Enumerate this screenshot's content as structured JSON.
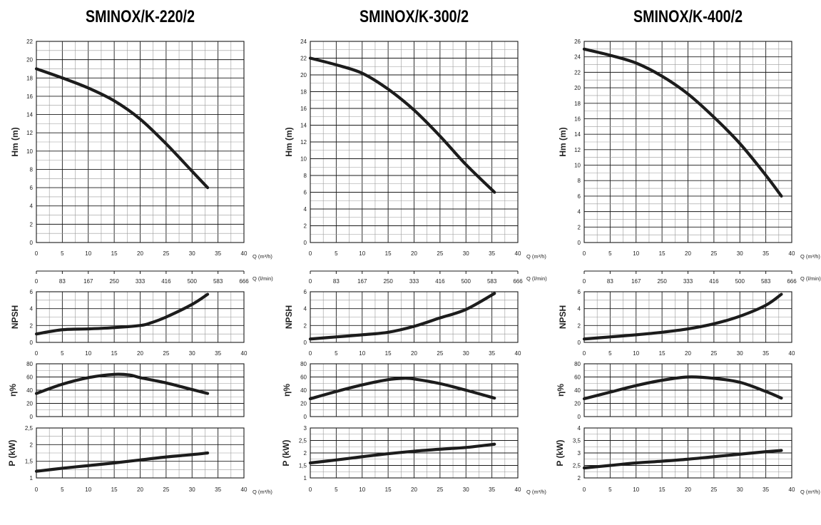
{
  "chart_data": [
    {
      "type": "line",
      "title": "SMINOX/K-220/2",
      "panels": {
        "head": {
          "ylabel": "Hm   (m)",
          "xlabel": "Q (m³/h)",
          "ylim": [
            0,
            22
          ],
          "yticks": [
            0,
            2,
            4,
            6,
            8,
            10,
            12,
            14,
            16,
            18,
            20,
            22
          ],
          "x": [
            0,
            5,
            10,
            15,
            20,
            25,
            30,
            33
          ],
          "y": [
            19,
            18,
            16.9,
            15.5,
            13.5,
            10.8,
            7.8,
            6
          ]
        },
        "lmin_axis": {
          "xlabel": "Q (l/min)",
          "ticks": [
            "0",
            "83",
            "167",
            "250",
            "333",
            "416",
            "500",
            "583",
            "666"
          ]
        },
        "npsh": {
          "ylabel": "NPSH",
          "ylim": [
            0,
            6
          ],
          "yticks": [
            0,
            2,
            4,
            6
          ],
          "x": [
            0,
            5,
            10,
            15,
            20,
            22,
            25,
            30,
            33
          ],
          "y": [
            1,
            1.5,
            1.6,
            1.75,
            2,
            2.3,
            3,
            4.5,
            5.7
          ]
        },
        "efficiency": {
          "ylabel": "η%",
          "ylim": [
            0,
            80
          ],
          "yticks": [
            0,
            20,
            40,
            60,
            80
          ],
          "x": [
            0,
            5,
            10,
            15,
            18,
            20,
            25,
            30,
            33
          ],
          "y": [
            35,
            49,
            59,
            64,
            63,
            59,
            51,
            41,
            35
          ]
        },
        "power": {
          "ylabel": "P   (kW)",
          "xlabel": "Q (m³/h)",
          "ylim": [
            1,
            2.5
          ],
          "yticks": [
            1,
            1.5,
            2,
            2.5
          ],
          "ytick_labels": [
            "1",
            "1,5",
            "2",
            "2,5"
          ],
          "x": [
            0,
            5,
            10,
            15,
            20,
            25,
            30,
            33
          ],
          "y": [
            1.2,
            1.29,
            1.37,
            1.45,
            1.54,
            1.63,
            1.7,
            1.75
          ]
        }
      },
      "xlim": [
        0,
        40
      ],
      "xticks": [
        0,
        5,
        10,
        15,
        20,
        25,
        30,
        35,
        40
      ]
    },
    {
      "type": "line",
      "title": "SMINOX/K-300/2",
      "panels": {
        "head": {
          "ylabel": "Hm   (m)",
          "xlabel": "Q (m³/h)",
          "ylim": [
            0,
            24
          ],
          "yticks": [
            0,
            2,
            4,
            6,
            8,
            10,
            12,
            14,
            16,
            18,
            20,
            22,
            24
          ],
          "x": [
            0,
            5,
            10,
            15,
            20,
            25,
            30,
            35.5
          ],
          "y": [
            22,
            21.2,
            20.2,
            18.3,
            15.8,
            12.7,
            9.3,
            6
          ]
        },
        "lmin_axis": {
          "xlabel": "Q (l/min)",
          "ticks": [
            "0",
            "83",
            "167",
            "250",
            "333",
            "416",
            "500",
            "583",
            "666"
          ]
        },
        "npsh": {
          "ylabel": "NPSH",
          "ylim": [
            0,
            6
          ],
          "yticks": [
            0,
            2,
            4,
            6
          ],
          "x": [
            0,
            5,
            10,
            15,
            20,
            25,
            30,
            35.5
          ],
          "y": [
            0.4,
            0.65,
            0.9,
            1.2,
            1.9,
            2.9,
            3.9,
            5.8
          ]
        },
        "efficiency": {
          "ylabel": "η%",
          "ylim": [
            0,
            80
          ],
          "yticks": [
            0,
            20,
            40,
            60,
            80
          ],
          "x": [
            0,
            5,
            10,
            15,
            18,
            20,
            25,
            30,
            35.5
          ],
          "y": [
            27,
            38,
            48,
            56,
            58,
            57,
            50,
            40,
            28
          ]
        },
        "power": {
          "ylabel": "P   (kW)",
          "xlabel": "Q (m³/h)",
          "ylim": [
            1,
            3
          ],
          "yticks": [
            1,
            1.5,
            2,
            2.5,
            3
          ],
          "ytick_labels": [
            "1",
            "1,5",
            "2",
            "2,5",
            "3"
          ],
          "x": [
            0,
            5,
            10,
            15,
            20,
            25,
            30,
            35.5
          ],
          "y": [
            1.6,
            1.72,
            1.85,
            1.97,
            2.07,
            2.15,
            2.22,
            2.35
          ]
        }
      },
      "xlim": [
        0,
        40
      ],
      "xticks": [
        0,
        5,
        10,
        15,
        20,
        25,
        30,
        35,
        40
      ]
    },
    {
      "type": "line",
      "title": "SMINOX/K-400/2",
      "panels": {
        "head": {
          "ylabel": "Hm   (m)",
          "xlabel": "Q (m³/h)",
          "ylim": [
            0,
            26
          ],
          "yticks": [
            0,
            2,
            4,
            6,
            8,
            10,
            12,
            14,
            16,
            18,
            20,
            22,
            24,
            26
          ],
          "x": [
            0,
            5,
            10,
            15,
            20,
            25,
            30,
            35,
            38
          ],
          "y": [
            25,
            24.2,
            23.2,
            21.5,
            19.2,
            16.2,
            12.8,
            8.7,
            6
          ]
        },
        "lmin_axis": {
          "xlabel": "Q (l/min)",
          "ticks": [
            "0",
            "83",
            "167",
            "250",
            "333",
            "416",
            "500",
            "583",
            "666"
          ]
        },
        "npsh": {
          "ylabel": "NPSH",
          "ylim": [
            0,
            6
          ],
          "yticks": [
            0,
            2,
            4,
            6
          ],
          "x": [
            0,
            5,
            10,
            15,
            20,
            25,
            30,
            35,
            38
          ],
          "y": [
            0.4,
            0.65,
            0.9,
            1.2,
            1.6,
            2.2,
            3.1,
            4.4,
            5.7
          ]
        },
        "efficiency": {
          "ylabel": "η%",
          "ylim": [
            0,
            80
          ],
          "yticks": [
            0,
            20,
            40,
            60,
            80
          ],
          "x": [
            0,
            5,
            10,
            15,
            20,
            25,
            30,
            35,
            38
          ],
          "y": [
            27,
            37,
            47,
            55,
            60,
            58,
            52,
            38,
            28
          ]
        },
        "power": {
          "ylabel": "P   (kW)",
          "xlabel": "Q (m³/h)",
          "ylim": [
            2,
            4
          ],
          "yticks": [
            2,
            2.5,
            3,
            3.5,
            4
          ],
          "ytick_labels": [
            "2",
            "2,5",
            "3",
            "3,5",
            "4"
          ],
          "x": [
            0,
            5,
            10,
            15,
            20,
            25,
            30,
            35,
            38
          ],
          "y": [
            2.4,
            2.5,
            2.6,
            2.67,
            2.75,
            2.85,
            2.95,
            3.05,
            3.1
          ]
        }
      },
      "xlim": [
        0,
        40
      ],
      "xticks": [
        0,
        5,
        10,
        15,
        20,
        25,
        30,
        35,
        40
      ]
    }
  ]
}
